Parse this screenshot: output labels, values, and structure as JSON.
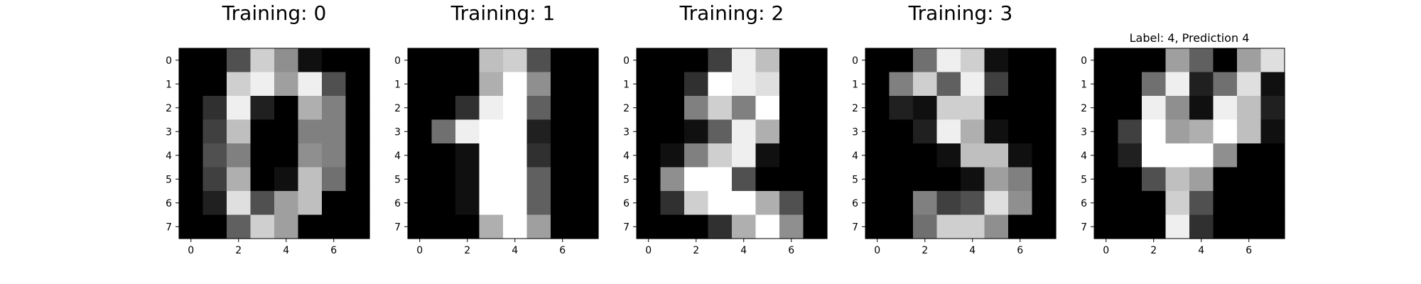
{
  "chart_data": [
    {
      "type": "heatmap",
      "title": "Training: 0",
      "colormap": "gray_r",
      "vmin": 0,
      "vmax": 16,
      "xticks": [
        0,
        2,
        4,
        6
      ],
      "yticks": [
        0,
        1,
        2,
        3,
        4,
        5,
        6,
        7
      ],
      "values": [
        [
          0,
          0,
          5,
          13,
          9,
          1,
          0,
          0
        ],
        [
          0,
          0,
          13,
          15,
          10,
          15,
          5,
          0
        ],
        [
          0,
          3,
          15,
          2,
          0,
          11,
          8,
          0
        ],
        [
          0,
          4,
          12,
          0,
          0,
          8,
          8,
          0
        ],
        [
          0,
          5,
          8,
          0,
          0,
          9,
          8,
          0
        ],
        [
          0,
          4,
          11,
          0,
          1,
          12,
          7,
          0
        ],
        [
          0,
          2,
          14,
          5,
          10,
          12,
          0,
          0
        ],
        [
          0,
          0,
          6,
          13,
          10,
          0,
          0,
          0
        ]
      ]
    },
    {
      "type": "heatmap",
      "title": "Training: 1",
      "colormap": "gray_r",
      "vmin": 0,
      "vmax": 16,
      "xticks": [
        0,
        2,
        4,
        6
      ],
      "yticks": [
        0,
        1,
        2,
        3,
        4,
        5,
        6,
        7
      ],
      "values": [
        [
          0,
          0,
          0,
          12,
          13,
          5,
          0,
          0
        ],
        [
          0,
          0,
          0,
          11,
          16,
          9,
          0,
          0
        ],
        [
          0,
          0,
          3,
          15,
          16,
          6,
          0,
          0
        ],
        [
          0,
          7,
          15,
          16,
          16,
          2,
          0,
          0
        ],
        [
          0,
          0,
          1,
          16,
          16,
          3,
          0,
          0
        ],
        [
          0,
          0,
          1,
          16,
          16,
          6,
          0,
          0
        ],
        [
          0,
          0,
          1,
          16,
          16,
          6,
          0,
          0
        ],
        [
          0,
          0,
          0,
          11,
          16,
          10,
          0,
          0
        ]
      ]
    },
    {
      "type": "heatmap",
      "title": "Training: 2",
      "colormap": "gray_r",
      "vmin": 0,
      "vmax": 16,
      "xticks": [
        0,
        2,
        4,
        6
      ],
      "yticks": [
        0,
        1,
        2,
        3,
        4,
        5,
        6,
        7
      ],
      "values": [
        [
          0,
          0,
          0,
          4,
          15,
          12,
          0,
          0
        ],
        [
          0,
          0,
          3,
          16,
          15,
          14,
          0,
          0
        ],
        [
          0,
          0,
          8,
          13,
          8,
          16,
          0,
          0
        ],
        [
          0,
          0,
          1,
          6,
          15,
          11,
          0,
          0
        ],
        [
          0,
          1,
          8,
          13,
          15,
          1,
          0,
          0
        ],
        [
          0,
          9,
          16,
          16,
          5,
          0,
          0,
          0
        ],
        [
          0,
          3,
          13,
          16,
          16,
          11,
          5,
          0
        ],
        [
          0,
          0,
          0,
          3,
          11,
          16,
          9,
          0
        ]
      ]
    },
    {
      "type": "heatmap",
      "title": "Training: 3",
      "colormap": "gray_r",
      "vmin": 0,
      "vmax": 16,
      "xticks": [
        0,
        2,
        4,
        6
      ],
      "yticks": [
        0,
        1,
        2,
        3,
        4,
        5,
        6,
        7
      ],
      "values": [
        [
          0,
          0,
          7,
          15,
          13,
          1,
          0,
          0
        ],
        [
          0,
          8,
          13,
          6,
          15,
          4,
          0,
          0
        ],
        [
          0,
          2,
          1,
          13,
          13,
          0,
          0,
          0
        ],
        [
          0,
          0,
          2,
          15,
          11,
          1,
          0,
          0
        ],
        [
          0,
          0,
          0,
          1,
          12,
          12,
          1,
          0
        ],
        [
          0,
          0,
          0,
          0,
          1,
          10,
          8,
          0
        ],
        [
          0,
          0,
          8,
          4,
          5,
          14,
          9,
          0
        ],
        [
          0,
          0,
          7,
          13,
          13,
          9,
          0,
          0
        ]
      ]
    },
    {
      "type": "heatmap",
      "title": "Label: 4, Prediction 4",
      "colormap": "gray_r",
      "vmin": 0,
      "vmax": 16,
      "xticks": [
        0,
        2,
        4,
        6
      ],
      "yticks": [
        0,
        1,
        2,
        3,
        4,
        5,
        6,
        7
      ],
      "values": [
        [
          0,
          0,
          0,
          10,
          6,
          0,
          10,
          14
        ],
        [
          0,
          0,
          7,
          15,
          2,
          7,
          14,
          1
        ],
        [
          0,
          0,
          15,
          9,
          1,
          15,
          12,
          2
        ],
        [
          0,
          4,
          16,
          10,
          11,
          16,
          12,
          1
        ],
        [
          0,
          2,
          16,
          16,
          16,
          9,
          0,
          0
        ],
        [
          0,
          0,
          5,
          12,
          10,
          0,
          0,
          0
        ],
        [
          0,
          0,
          0,
          13,
          5,
          0,
          0,
          0
        ],
        [
          0,
          0,
          0,
          15,
          3,
          0,
          0,
          0
        ]
      ]
    }
  ]
}
